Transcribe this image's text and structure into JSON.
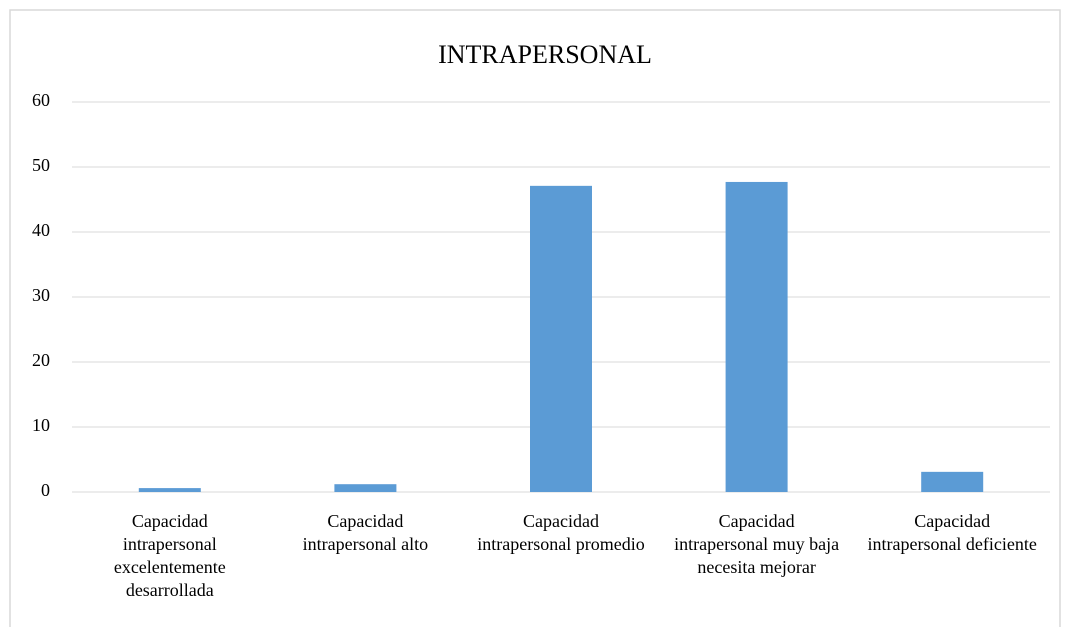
{
  "chart_data": {
    "type": "bar",
    "title": "INTRAPERSONAL",
    "categories": [
      "Capacidad intrapersonal excelentemente desarrollada",
      "Capacidad intrapersonal alto",
      "Capacidad intrapersonal promedio",
      "Capacidad intrapersonal muy baja necesita mejorar",
      "Capacidad intrapersonal deficiente"
    ],
    "values": [
      0.6,
      1.2,
      47.1,
      47.7,
      3.1
    ],
    "color": "#5b9bd5",
    "ylim": [
      0,
      60
    ],
    "yticks": [
      0,
      10,
      20,
      30,
      40,
      50,
      60
    ],
    "grid": true
  }
}
